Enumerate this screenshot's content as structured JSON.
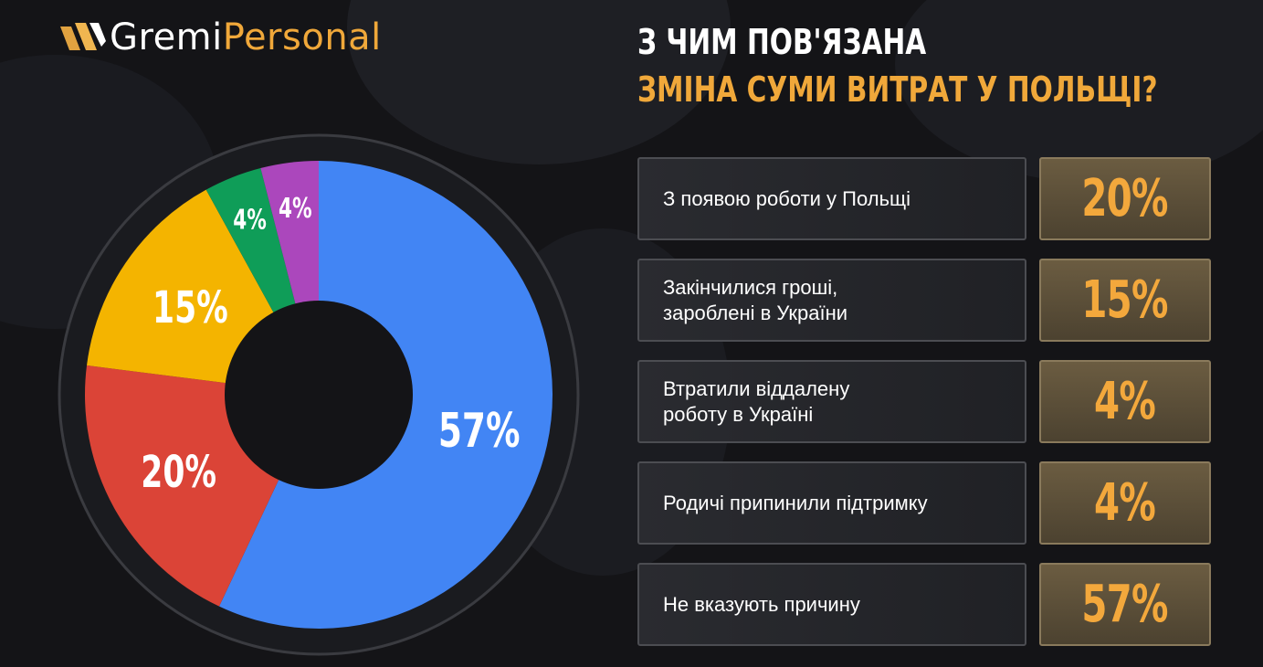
{
  "brand": {
    "name_part1": "Gremi",
    "name_part2": "Personal"
  },
  "title": {
    "line1": "З ЧИМ ПОВ'ЯЗАНА",
    "line2": "ЗМІНА СУМИ ВИТРАТ У ПОЛЬЩІ?"
  },
  "colors": {
    "accent": "#f0a83a",
    "blue": "#4285f4",
    "red": "#db4437",
    "yellow": "#f4b400",
    "green": "#0f9d58",
    "purple": "#ab47bc"
  },
  "rows": [
    {
      "label": "З появою роботи у Польщі",
      "value": "20%"
    },
    {
      "label": "Закінчилися гроші,\nзароблені в України",
      "value": "15%"
    },
    {
      "label": "Втратили віддалену\nроботу в Україні",
      "value": "4%"
    },
    {
      "label": "Родичі припинили підтримку",
      "value": "4%"
    },
    {
      "label": "Не вказують причину",
      "value": "57%"
    }
  ],
  "chart_data": {
    "type": "pie",
    "title": "З ЧИМ ПОВ'ЯЗАНА ЗМІНА СУМИ ВИТРАТ У ПОЛЬЩІ?",
    "categories": [
      "Не вказують причину",
      "З появою роботи у Польщі",
      "Закінчилися гроші, зароблені в України",
      "Втратили віддалену роботу в Україні",
      "Родичі припинили підтримку"
    ],
    "values": [
      57,
      20,
      15,
      4,
      4
    ],
    "labels": [
      "57%",
      "20%",
      "15%",
      "4%",
      "4%"
    ],
    "colors": [
      "#4285f4",
      "#db4437",
      "#f4b400",
      "#0f9d58",
      "#ab47bc"
    ],
    "start": "top, clockwise",
    "donut": true
  }
}
